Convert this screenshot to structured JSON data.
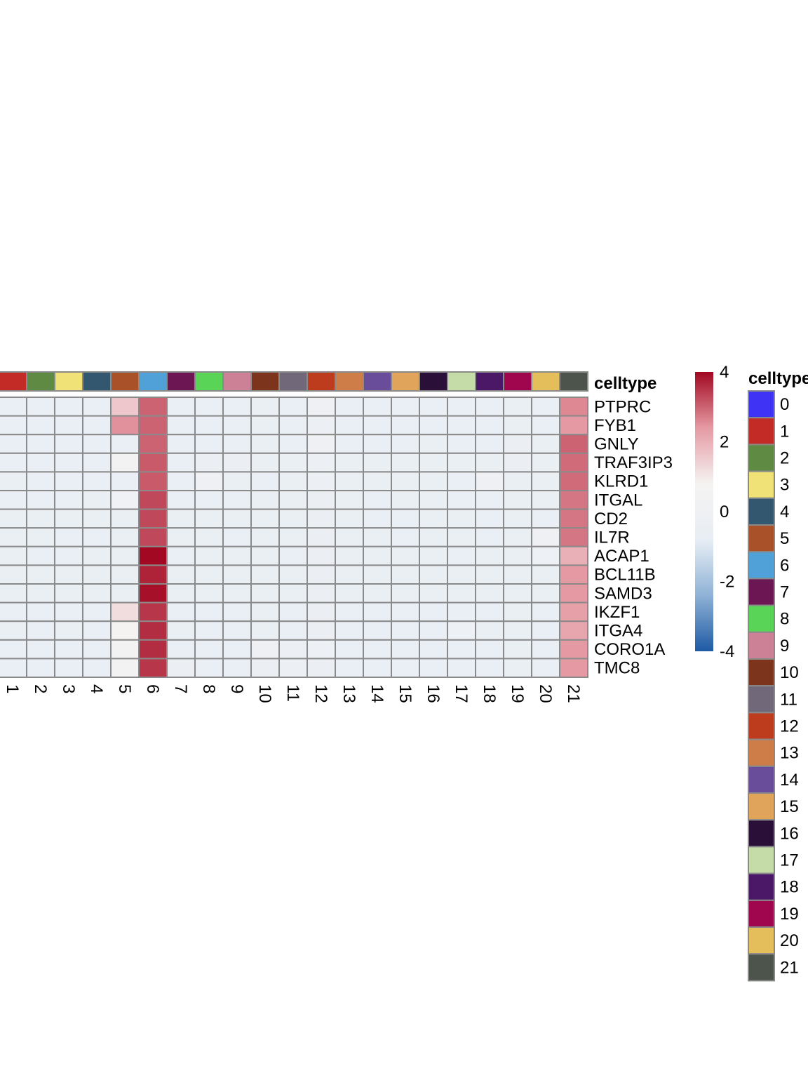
{
  "chart_data": {
    "type": "heatmap",
    "columns": [
      "1",
      "2",
      "3",
      "4",
      "5",
      "6",
      "7",
      "8",
      "9",
      "10",
      "11",
      "12",
      "13",
      "14",
      "15",
      "16",
      "17",
      "18",
      "19",
      "20",
      "21"
    ],
    "rows": [
      "PTPRC",
      "FYB1",
      "GNLY",
      "TRAF3IP3",
      "KLRD1",
      "ITGAL",
      "CD2",
      "IL7R",
      "ACAP1",
      "BCL11B",
      "SAMD3",
      "IKZF1",
      "ITGA4",
      "CORO1A",
      "TMC8"
    ],
    "values": [
      [
        -0.6,
        -0.6,
        -0.6,
        -0.6,
        1.6,
        3.0,
        -0.6,
        -0.6,
        -0.6,
        -0.5,
        -0.6,
        -0.1,
        -0.6,
        -0.6,
        -0.6,
        -0.6,
        -0.6,
        -0.6,
        -0.5,
        -0.6,
        2.6
      ],
      [
        -0.6,
        -0.6,
        -0.6,
        -0.6,
        2.5,
        3.0,
        -0.6,
        -0.6,
        -0.6,
        -0.5,
        -0.6,
        -0.3,
        -0.6,
        -0.6,
        -0.6,
        -0.6,
        -0.6,
        -0.6,
        -0.5,
        -0.6,
        2.4
      ],
      [
        -0.6,
        -0.6,
        -0.6,
        -0.6,
        -0.6,
        3.0,
        -0.6,
        -0.6,
        -0.6,
        -0.5,
        -0.6,
        -0.1,
        -0.6,
        -0.6,
        -0.6,
        -0.5,
        -0.6,
        -0.6,
        -0.4,
        -0.5,
        3.0
      ],
      [
        -0.6,
        -0.6,
        -0.6,
        -0.6,
        0.4,
        3.1,
        -0.6,
        -0.4,
        -0.4,
        -0.5,
        -0.5,
        -0.3,
        -0.5,
        -0.5,
        -0.5,
        -0.5,
        -0.5,
        -0.5,
        -0.4,
        -0.5,
        2.9
      ],
      [
        -0.5,
        -0.6,
        -0.6,
        -0.6,
        -0.6,
        3.1,
        -0.6,
        -0.1,
        -0.5,
        -0.6,
        -0.5,
        -0.3,
        -0.5,
        -0.5,
        -0.5,
        -0.5,
        -0.6,
        -0.1,
        -0.5,
        -0.5,
        2.9
      ],
      [
        -0.6,
        -0.6,
        -0.6,
        -0.5,
        0.0,
        3.3,
        -0.6,
        -0.6,
        -0.6,
        -0.5,
        -0.5,
        -0.4,
        -0.5,
        -0.6,
        -0.5,
        -0.5,
        -0.6,
        -0.6,
        -0.5,
        -0.5,
        2.8
      ],
      [
        -0.5,
        -0.5,
        -0.5,
        -0.5,
        -0.5,
        3.3,
        -0.5,
        -0.5,
        -0.5,
        -0.5,
        -0.5,
        -0.4,
        -0.5,
        -0.6,
        -0.6,
        -0.5,
        -0.5,
        -0.6,
        -0.5,
        -0.6,
        2.8
      ],
      [
        -0.5,
        -0.5,
        -0.6,
        -0.6,
        -0.5,
        3.3,
        -0.5,
        -0.5,
        -0.6,
        -0.5,
        -0.5,
        -0.4,
        -0.5,
        -0.5,
        -0.6,
        -0.5,
        -0.5,
        -0.6,
        -0.5,
        -0.1,
        2.8
      ],
      [
        -0.5,
        -0.6,
        -0.6,
        -0.5,
        -0.5,
        4.0,
        -0.6,
        -0.5,
        -0.5,
        -0.5,
        -0.6,
        -0.4,
        -0.5,
        -0.5,
        -0.5,
        -0.5,
        -0.6,
        -0.5,
        -0.5,
        -0.2,
        2.0
      ],
      [
        -0.5,
        -0.5,
        -0.5,
        -0.5,
        -0.5,
        3.7,
        -0.5,
        -0.5,
        -0.5,
        -0.5,
        -0.5,
        -0.4,
        -0.5,
        -0.5,
        -0.5,
        -0.5,
        -0.5,
        -0.5,
        -0.5,
        -0.5,
        2.4
      ],
      [
        -0.5,
        -0.5,
        -0.5,
        -0.5,
        -0.5,
        3.9,
        -0.5,
        -0.5,
        -0.5,
        -0.5,
        -0.5,
        -0.4,
        -0.5,
        -0.5,
        -0.5,
        -0.5,
        -0.5,
        -0.5,
        -0.5,
        -0.5,
        2.4
      ],
      [
        -0.6,
        -0.6,
        -0.6,
        -0.6,
        1.2,
        3.5,
        -0.6,
        -0.6,
        -0.6,
        -0.5,
        -0.6,
        -0.4,
        -0.6,
        -0.6,
        -0.6,
        -0.6,
        -0.6,
        -0.6,
        -0.5,
        -0.6,
        2.3
      ],
      [
        -0.5,
        -0.6,
        -0.5,
        -0.6,
        0.8,
        3.6,
        -0.5,
        -0.6,
        -0.6,
        -0.5,
        -0.6,
        -0.4,
        -0.6,
        -0.6,
        -0.6,
        -0.6,
        -0.2,
        -0.5,
        -0.5,
        -0.6,
        2.2
      ],
      [
        -0.6,
        -0.6,
        -0.6,
        -0.6,
        0.5,
        3.6,
        -0.6,
        -0.6,
        -0.6,
        -0.1,
        -0.3,
        -0.2,
        -0.6,
        -0.6,
        -0.6,
        -0.6,
        -0.6,
        -0.6,
        -0.5,
        -0.6,
        2.4
      ],
      [
        -0.6,
        -0.6,
        -0.6,
        -0.6,
        0.5,
        3.5,
        -0.4,
        -0.6,
        -0.6,
        -0.4,
        -0.3,
        -0.4,
        -0.6,
        -0.6,
        -0.6,
        -0.6,
        -0.6,
        -0.6,
        -0.5,
        -0.6,
        2.4
      ]
    ],
    "annotation": {
      "title": "celltype",
      "label": "celltype",
      "levels": [
        "0",
        "1",
        "2",
        "3",
        "4",
        "5",
        "6",
        "7",
        "8",
        "9",
        "10",
        "11",
        "12",
        "13",
        "14",
        "15",
        "16",
        "17",
        "18",
        "19",
        "20",
        "21"
      ],
      "colors": [
        "#3f33f5",
        "#c32b27",
        "#5f8a44",
        "#f0e276",
        "#345770",
        "#a95129",
        "#4fa1d8",
        "#6c1653",
        "#5ad456",
        "#cd8196",
        "#7c341c",
        "#716879",
        "#be3c1e",
        "#ce7d49",
        "#6a4d9a",
        "#e0a45b",
        "#2a1038",
        "#c5dca9",
        "#4a1866",
        "#a0064d",
        "#e3be5b",
        "#4c544c"
      ]
    },
    "colorscale": {
      "min": -4,
      "max": 4,
      "ticks": [
        "4",
        "2",
        "0",
        "-2",
        "-4"
      ],
      "colors": [
        "#1f5aa5",
        "#8fb2d6",
        "#e8eef5",
        "#f5f3f2",
        "#e59aa3",
        "#a20821"
      ]
    }
  }
}
